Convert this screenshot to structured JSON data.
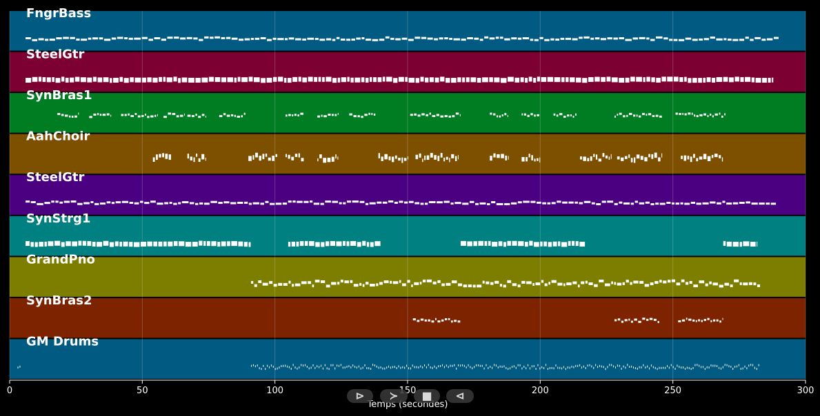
{
  "chart_data": {
    "type": "piano-roll",
    "xlabel": "Temps (secondes)",
    "xlim": [
      0,
      300
    ],
    "xticks": [
      0,
      50,
      100,
      150,
      200,
      250,
      300
    ],
    "grid": true,
    "tracks": [
      {
        "name": "FngrBass",
        "color": "#005a82",
        "density": "continuous",
        "segments": [
          [
            6,
            290
          ]
        ]
      },
      {
        "name": "SteelGtr",
        "color": "#7d0032",
        "density": "block",
        "segments": [
          [
            6,
            288
          ]
        ]
      },
      {
        "name": "SynBras1",
        "color": "#007d23",
        "density": "sparse",
        "segments": [
          [
            18,
            26
          ],
          [
            30,
            38
          ],
          [
            42,
            56
          ],
          [
            58,
            66
          ],
          [
            67,
            74
          ],
          [
            79,
            89
          ],
          [
            104,
            111
          ],
          [
            116,
            124
          ],
          [
            128,
            138
          ],
          [
            151,
            170
          ],
          [
            181,
            188
          ],
          [
            193,
            200
          ],
          [
            205,
            214
          ],
          [
            228,
            246
          ],
          [
            251,
            270
          ]
        ]
      },
      {
        "name": "AahChoir",
        "color": "#7d5000",
        "density": "clusters",
        "segments": [
          [
            54,
            61
          ],
          [
            67,
            74
          ],
          [
            90,
            101
          ],
          [
            104,
            111
          ],
          [
            116,
            124
          ],
          [
            139,
            150
          ],
          [
            153,
            169
          ],
          [
            181,
            188
          ],
          [
            193,
            200
          ],
          [
            215,
            227
          ],
          [
            229,
            246
          ],
          [
            253,
            269
          ]
        ]
      },
      {
        "name": "SteelGtr",
        "color": "#4b0082",
        "density": "continuous",
        "segments": [
          [
            6,
            289
          ]
        ]
      },
      {
        "name": "SynStrg1",
        "color": "#008080",
        "density": "block",
        "segments": [
          [
            6,
            91
          ],
          [
            105,
            140
          ],
          [
            170,
            217
          ],
          [
            269,
            282
          ]
        ]
      },
      {
        "name": "GrandPno",
        "color": "#7d7d00",
        "density": "melody",
        "segments": [
          [
            91,
            283
          ]
        ]
      },
      {
        "name": "SynBras2",
        "color": "#7d2300",
        "density": "sparse",
        "segments": [
          [
            152,
            170
          ],
          [
            228,
            245
          ],
          [
            252,
            269
          ]
        ]
      },
      {
        "name": "GM Drums",
        "color": "#005a82",
        "density": "drums",
        "segments": [
          [
            3,
            4
          ],
          [
            91,
            283
          ]
        ]
      }
    ]
  },
  "controls": {
    "play_label": "⊳",
    "forward_label": "≻",
    "stop_label": "■",
    "back_label": "⊲"
  }
}
